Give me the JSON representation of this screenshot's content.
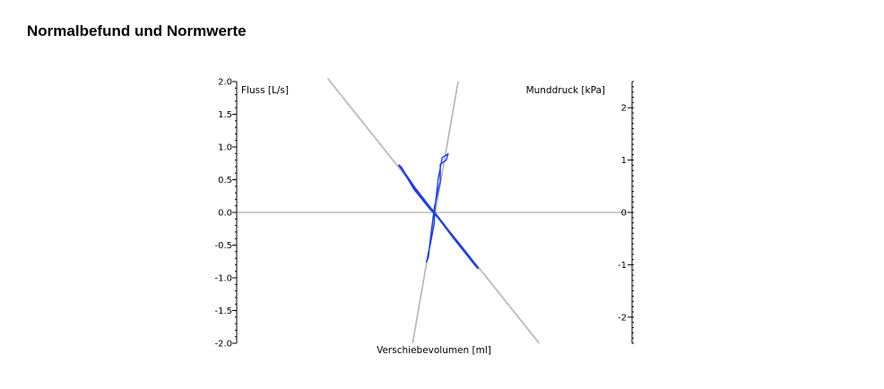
{
  "page": {
    "title": "Normalbefund und Normwerte"
  },
  "chart_data": {
    "type": "line",
    "left_axis_label": "Fluss [L/s]",
    "right_axis_label": "Munddruck [kPa]",
    "bottom_label": "Verschiebevolumen [ml]",
    "left_ticks": [
      "2.0",
      "1.5",
      "1.0",
      "0.5",
      "0.0",
      "-0.5",
      "-1.0",
      "-1.5",
      "-2.0"
    ],
    "right_ticks": [
      "2",
      "1",
      "0",
      "-1",
      "-2"
    ],
    "ylim_left": [
      -2.0,
      2.0
    ],
    "ylim_right": [
      -2.5,
      2.5
    ],
    "reference_lines": [
      {
        "name": "flow",
        "points": [
          [
            -0.54,
            2.05
          ],
          [
            0.53,
            -2.0
          ]
        ]
      },
      {
        "name": "pressure",
        "points": [
          [
            -0.11,
            -2.5
          ],
          [
            0.12,
            2.5
          ]
        ]
      }
    ],
    "series": [
      {
        "axis": "left",
        "points": [
          [
            -0.18,
            0.73
          ],
          [
            -0.1,
            0.38
          ],
          [
            -0.02,
            0.06
          ],
          [
            0.0,
            0.0
          ],
          [
            0.06,
            -0.24
          ],
          [
            0.14,
            -0.54
          ],
          [
            0.22,
            -0.85
          ],
          [
            0.2,
            -0.78
          ],
          [
            0.1,
            -0.4
          ],
          [
            0.02,
            -0.08
          ],
          [
            -0.02,
            0.05
          ],
          [
            -0.1,
            0.35
          ],
          [
            -0.17,
            0.7
          ]
        ]
      },
      {
        "axis": "right",
        "points": [
          [
            0.0,
            0.0
          ],
          [
            0.02,
            0.65
          ],
          [
            0.04,
            1.05
          ],
          [
            0.07,
            1.12
          ],
          [
            0.06,
            1.0
          ],
          [
            0.03,
            0.92
          ],
          [
            0.03,
            0.6
          ],
          [
            0.0,
            0.1
          ],
          [
            -0.02,
            -0.5
          ],
          [
            -0.03,
            -0.85
          ],
          [
            -0.04,
            -0.95
          ],
          [
            -0.02,
            -0.6
          ],
          [
            0.0,
            -0.2
          ],
          [
            0.0,
            0.0
          ]
        ]
      }
    ],
    "colors": {
      "reference": "#b4b4b4",
      "zero_line": "#9a9a9a",
      "axis": "#000000",
      "series": "#1f3fd6"
    }
  }
}
